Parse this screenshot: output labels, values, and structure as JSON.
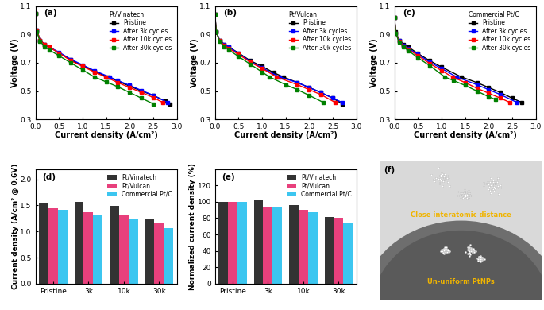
{
  "chart_data": [
    {
      "type": "line",
      "title": "(a)",
      "subtitle": "Pt/Vinatech",
      "x_label": "Current density (A/cm²)",
      "y_label": "Voltage (V)",
      "xlim": [
        0,
        3.0
      ],
      "ylim": [
        0.3,
        1.1
      ],
      "xticks": [
        {
          "value": 0,
          "label": "0.0"
        },
        0.5,
        {
          "value": 1,
          "label": "1.0"
        },
        1.5,
        {
          "value": 2,
          "label": "2.0"
        },
        2.5,
        {
          "value": 3,
          "label": "3.0"
        }
      ],
      "yticks": [
        0.3,
        0.5,
        0.7,
        0.9,
        1.1
      ],
      "legend": "upper right",
      "marker": "square",
      "series": [
        {
          "name": "Pristine",
          "color": "#000000",
          "x": [
            0,
            0.03,
            0.1,
            0.2,
            0.3,
            0.5,
            0.75,
            1.0,
            1.25,
            1.54,
            1.75,
            2.0,
            2.25,
            2.5,
            2.75,
            2.85
          ],
          "values": [
            1.05,
            0.93,
            0.86,
            0.83,
            0.81,
            0.77,
            0.72,
            0.68,
            0.64,
            0.6,
            0.57,
            0.535,
            0.5,
            0.47,
            0.43,
            0.41
          ]
        },
        {
          "name": "After 3k cycles",
          "color": "#0000ff",
          "x": [
            0,
            0.03,
            0.1,
            0.2,
            0.3,
            0.5,
            0.75,
            1.0,
            1.25,
            1.57,
            1.75,
            2.0,
            2.25,
            2.5,
            2.8
          ],
          "values": [
            1.05,
            0.93,
            0.86,
            0.83,
            0.81,
            0.775,
            0.725,
            0.685,
            0.645,
            0.6,
            0.575,
            0.54,
            0.505,
            0.47,
            0.42
          ]
        },
        {
          "name": "After 10k cycles",
          "color": "#ff0000",
          "x": [
            0,
            0.03,
            0.1,
            0.2,
            0.3,
            0.5,
            0.75,
            1.0,
            1.25,
            1.49,
            1.75,
            2.0,
            2.25,
            2.5,
            2.7
          ],
          "values": [
            1.05,
            0.93,
            0.86,
            0.83,
            0.81,
            0.77,
            0.715,
            0.675,
            0.635,
            0.6,
            0.56,
            0.525,
            0.49,
            0.455,
            0.42
          ]
        },
        {
          "name": "After 30k cycles",
          "color": "#008000",
          "x": [
            0,
            0.03,
            0.1,
            0.2,
            0.3,
            0.5,
            0.75,
            1.0,
            1.25,
            1.5,
            1.75,
            2.0,
            2.25,
            2.5
          ],
          "values": [
            1.05,
            0.92,
            0.85,
            0.815,
            0.79,
            0.75,
            0.7,
            0.65,
            0.6,
            0.565,
            0.53,
            0.49,
            0.45,
            0.41
          ]
        }
      ]
    },
    {
      "type": "line",
      "title": "(b)",
      "subtitle": "Pt/Vulcan",
      "x_label": "Current density (A/cm²)",
      "y_label": "Voltage (V)",
      "xlim": [
        0,
        3.0
      ],
      "ylim": [
        0.3,
        1.1
      ],
      "xticks": [
        {
          "value": 0,
          "label": "0.0"
        },
        0.5,
        {
          "value": 1,
          "label": "1.0"
        },
        1.5,
        {
          "value": 2,
          "label": "2.0"
        },
        2.5,
        {
          "value": 3,
          "label": "3.0"
        }
      ],
      "yticks": [
        0.3,
        0.5,
        0.7,
        0.9,
        1.1
      ],
      "legend": "upper right",
      "marker": "square",
      "series": [
        {
          "name": "Pristine",
          "color": "#000000",
          "x": [
            0,
            0.03,
            0.1,
            0.2,
            0.3,
            0.5,
            0.75,
            1.0,
            1.25,
            1.45,
            1.75,
            2.0,
            2.25,
            2.5,
            2.7
          ],
          "values": [
            1.04,
            0.92,
            0.86,
            0.83,
            0.81,
            0.77,
            0.715,
            0.675,
            0.63,
            0.6,
            0.56,
            0.525,
            0.49,
            0.45,
            0.41
          ]
        },
        {
          "name": "After 3k cycles",
          "color": "#0000ff",
          "x": [
            0,
            0.03,
            0.1,
            0.2,
            0.3,
            0.5,
            0.75,
            1.0,
            1.37,
            1.75,
            2.0,
            2.25,
            2.5,
            2.7
          ],
          "values": [
            1.04,
            0.92,
            0.86,
            0.83,
            0.81,
            0.765,
            0.71,
            0.665,
            0.6,
            0.56,
            0.525,
            0.49,
            0.45,
            0.42
          ]
        },
        {
          "name": "After 10k cycles",
          "color": "#ff0000",
          "x": [
            0,
            0.03,
            0.1,
            0.2,
            0.3,
            0.5,
            0.75,
            1.0,
            1.31,
            1.75,
            2.0,
            2.25,
            2.55
          ],
          "values": [
            1.04,
            0.92,
            0.855,
            0.825,
            0.8,
            0.76,
            0.705,
            0.66,
            0.6,
            0.545,
            0.51,
            0.475,
            0.42
          ]
        },
        {
          "name": "After 30k cycles",
          "color": "#008000",
          "x": [
            0,
            0.03,
            0.1,
            0.2,
            0.3,
            0.5,
            0.75,
            1.0,
            1.16,
            1.5,
            1.75,
            2.0,
            2.3
          ],
          "values": [
            1.04,
            0.92,
            0.85,
            0.815,
            0.79,
            0.745,
            0.69,
            0.635,
            0.6,
            0.545,
            0.51,
            0.47,
            0.42
          ]
        }
      ]
    },
    {
      "type": "line",
      "title": "(c)",
      "subtitle": "Commercial Pt/C",
      "x_label": "Current density (A/cm²)",
      "y_label": "Voltage (V)",
      "xlim": [
        0,
        3.0
      ],
      "ylim": [
        0.3,
        1.1
      ],
      "xticks": [
        {
          "value": 0,
          "label": "0.0"
        },
        0.5,
        {
          "value": 1,
          "label": "1.0"
        },
        1.5,
        {
          "value": 2,
          "label": "2.0"
        },
        2.5,
        {
          "value": 3,
          "label": "3.0"
        }
      ],
      "yticks": [
        0.3,
        0.5,
        0.7,
        0.9,
        1.1
      ],
      "legend": "upper right",
      "marker": "square",
      "series": [
        {
          "name": "Pristine",
          "color": "#000000",
          "x": [
            0,
            0.03,
            0.1,
            0.2,
            0.3,
            0.5,
            0.75,
            1.0,
            1.42,
            1.75,
            2.0,
            2.25,
            2.5,
            2.7
          ],
          "values": [
            1.02,
            0.92,
            0.86,
            0.83,
            0.81,
            0.765,
            0.715,
            0.67,
            0.6,
            0.56,
            0.525,
            0.49,
            0.45,
            0.42
          ]
        },
        {
          "name": "After 3k cycles",
          "color": "#0000ff",
          "x": [
            0,
            0.03,
            0.1,
            0.2,
            0.3,
            0.5,
            0.75,
            1.0,
            1.32,
            1.75,
            2.0,
            2.25,
            2.6
          ],
          "values": [
            1.02,
            0.91,
            0.855,
            0.825,
            0.8,
            0.76,
            0.705,
            0.66,
            0.6,
            0.545,
            0.51,
            0.475,
            0.42
          ]
        },
        {
          "name": "After 10k cycles",
          "color": "#ff0000",
          "x": [
            0,
            0.03,
            0.1,
            0.2,
            0.3,
            0.5,
            0.75,
            1.0,
            1.23,
            1.5,
            1.75,
            2.0,
            2.25,
            2.45
          ],
          "values": [
            1.02,
            0.91,
            0.85,
            0.82,
            0.795,
            0.75,
            0.695,
            0.645,
            0.6,
            0.56,
            0.52,
            0.485,
            0.45,
            0.42
          ]
        },
        {
          "name": "After 30k cycles",
          "color": "#008000",
          "x": [
            0,
            0.03,
            0.1,
            0.2,
            0.3,
            0.5,
            0.75,
            1.07,
            1.25,
            1.5,
            1.75,
            2.0,
            2.15
          ],
          "values": [
            1.02,
            0.91,
            0.845,
            0.81,
            0.785,
            0.735,
            0.68,
            0.6,
            0.575,
            0.54,
            0.5,
            0.46,
            0.44
          ]
        }
      ]
    },
    {
      "type": "bar",
      "title": "(d)",
      "y_label": "Current density (A/cm² @ 0.6V)",
      "categories": [
        "Pristine",
        "3k",
        "10k",
        "30k"
      ],
      "ylim": [
        0,
        2.2
      ],
      "yticks": [
        {
          "value": 0,
          "label": "0.0"
        },
        0.5,
        {
          "value": 1,
          "label": "1.0"
        },
        1.5,
        {
          "value": 2,
          "label": "2.0"
        }
      ],
      "legend": "upper right",
      "series": [
        {
          "name": "Pt/Vinatech",
          "color": "#333333",
          "values": [
            1.54,
            1.57,
            1.49,
            1.25
          ]
        },
        {
          "name": "Pt/Vulcan",
          "color": "#e8407c",
          "values": [
            1.45,
            1.37,
            1.31,
            1.16
          ]
        },
        {
          "name": "Commercial Pt/C",
          "color": "#3cc6f0",
          "values": [
            1.42,
            1.32,
            1.23,
            1.07
          ]
        }
      ]
    },
    {
      "type": "bar",
      "title": "(e)",
      "y_label": "Normalized current density (%)",
      "categories": [
        "Pristine",
        "3k",
        "10k",
        "30k"
      ],
      "ylim": [
        0,
        140
      ],
      "yticks": [
        0,
        20,
        40,
        60,
        80,
        100,
        120
      ],
      "legend": "upper right",
      "series": [
        {
          "name": "Pt/Vinatech",
          "color": "#333333",
          "values": [
            100,
            101.5,
            96,
            81
          ]
        },
        {
          "name": "Pt/Vulcan",
          "color": "#e8407c",
          "values": [
            100,
            94,
            90,
            80
          ]
        },
        {
          "name": "Commercial Pt/C",
          "color": "#3cc6f0",
          "values": [
            100,
            93,
            87,
            75
          ]
        }
      ]
    },
    {
      "type": "illustration",
      "title": "(f)",
      "annotations": [
        "Close interatomic distance",
        "Un-uniform PtNPs"
      ]
    }
  ]
}
